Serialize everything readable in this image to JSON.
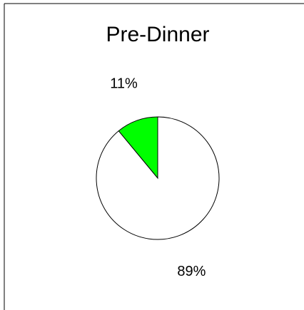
{
  "chart_data": {
    "type": "pie",
    "title": "Pre-Dinner",
    "values": [
      11,
      89
    ],
    "value_labels": [
      "11%",
      "89%"
    ],
    "colors": [
      "#00ff00",
      "#ffffff"
    ]
  }
}
